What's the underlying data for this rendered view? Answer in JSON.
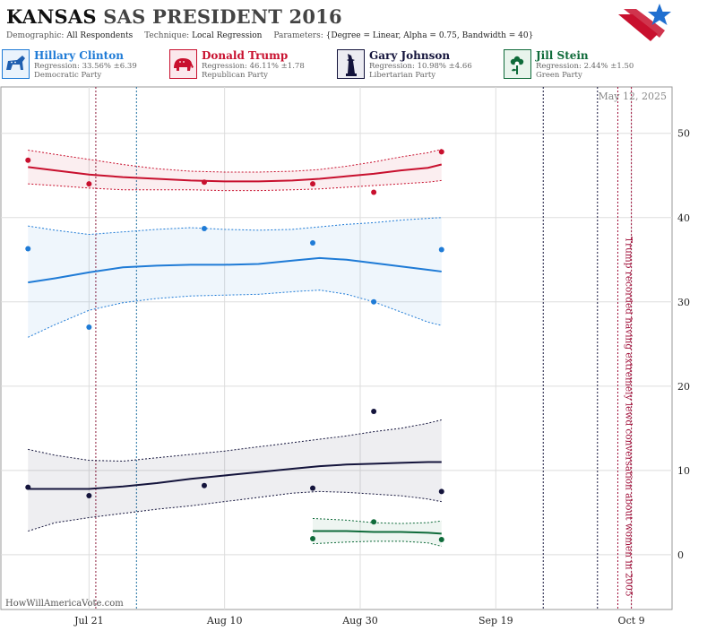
{
  "header": {
    "title_state": "KANSAS",
    "title_rest": "SAS PRESIDENT 2016",
    "demographic_label": "Demographic:",
    "demographic_value": "All Respondents",
    "technique_label": "Technique:",
    "technique_value": "Local Regression",
    "parameters_label": "Parameters:",
    "parameters_value": "{Degree = Linear, Alpha = 0.75, Bandwidth = 40}"
  },
  "candidates": [
    {
      "name": "Hillary Clinton",
      "regression": "Regression: 33.56% ±6.39",
      "party": "Democratic Party",
      "color": "#1f7bd6",
      "icon": "donkey-icon"
    },
    {
      "name": "Donald Trump",
      "regression": "Regression: 46.11% ±1.78",
      "party": "Republican Party",
      "color": "#c8102e",
      "icon": "elephant-icon"
    },
    {
      "name": "Gary Johnson",
      "regression": "Regression: 10.98% ±4.66",
      "party": "Libertarian Party",
      "color": "#14143c",
      "icon": "statue-of-liberty-icon"
    },
    {
      "name": "Jill Stein",
      "regression": "Regression: 2.44% ±1.50",
      "party": "Green Party",
      "color": "#0f6b3a",
      "icon": "flower-icon"
    }
  ],
  "date_label": "May 12, 2025",
  "annotation": "Trump recorded having extremely lewd conversation about women in 2005",
  "watermark": "HowWillAmericaVote.com",
  "chart_data": {
    "type": "scatter",
    "x_ticks": [
      "Jul 21",
      "Aug 10",
      "Aug 30",
      "Sep 19",
      "Oct 9"
    ],
    "x_tick_days": [
      0,
      20,
      40,
      60,
      80
    ],
    "xlim_days": [
      -13,
      86
    ],
    "y_ticks": [
      0,
      10,
      20,
      30,
      40,
      50
    ],
    "ylim": [
      -6.5,
      55.5
    ],
    "y_axis_side": "right",
    "grid": true,
    "event_lines": [
      {
        "day": 1,
        "color": "#8b1a3a"
      },
      {
        "day": 7,
        "color": "#1f6fa0"
      },
      {
        "day": 67,
        "color": "#14143c"
      },
      {
        "day": 75,
        "color": "#14143c"
      },
      {
        "day": 78,
        "color": "#a0103a"
      },
      {
        "day": 80,
        "color": "#a0103a"
      }
    ],
    "series": [
      {
        "name": "Hillary Clinton",
        "color": "#1f7bd6",
        "points": [
          [
            -9,
            36.3
          ],
          [
            0,
            27
          ],
          [
            17,
            38.7
          ],
          [
            33,
            37
          ],
          [
            42,
            30
          ],
          [
            52,
            36.2
          ]
        ],
        "fit_x": [
          -9,
          -5,
          0,
          5,
          10,
          15,
          20,
          25,
          30,
          34,
          38,
          42,
          46,
          50,
          52
        ],
        "fit": [
          32.3,
          32.8,
          33.5,
          34.1,
          34.3,
          34.4,
          34.4,
          34.5,
          34.9,
          35.2,
          35.0,
          34.6,
          34.2,
          33.8,
          33.6
        ],
        "upper": [
          39.0,
          38.5,
          38.0,
          38.3,
          38.6,
          38.8,
          38.6,
          38.5,
          38.6,
          38.9,
          39.2,
          39.4,
          39.7,
          39.9,
          40.0
        ],
        "lower": [
          25.8,
          27.3,
          29.0,
          29.9,
          30.4,
          30.7,
          30.8,
          30.9,
          31.2,
          31.4,
          30.9,
          30.0,
          28.8,
          27.6,
          27.2
        ]
      },
      {
        "name": "Donald Trump",
        "color": "#c8102e",
        "points": [
          [
            -9,
            46.8
          ],
          [
            0,
            44
          ],
          [
            17,
            44.2
          ],
          [
            33,
            44
          ],
          [
            42,
            43
          ],
          [
            52,
            47.8
          ]
        ],
        "fit_x": [
          -9,
          -5,
          0,
          5,
          10,
          15,
          20,
          25,
          30,
          34,
          38,
          42,
          46,
          50,
          52
        ],
        "fit": [
          46.0,
          45.6,
          45.1,
          44.8,
          44.6,
          44.4,
          44.3,
          44.3,
          44.4,
          44.6,
          44.9,
          45.2,
          45.6,
          45.9,
          46.3
        ],
        "upper": [
          48.0,
          47.5,
          46.9,
          46.3,
          45.8,
          45.5,
          45.4,
          45.4,
          45.5,
          45.7,
          46.1,
          46.6,
          47.2,
          47.7,
          48.1
        ],
        "lower": [
          44.0,
          43.8,
          43.5,
          43.3,
          43.3,
          43.3,
          43.2,
          43.2,
          43.3,
          43.4,
          43.6,
          43.8,
          44.0,
          44.2,
          44.4
        ]
      },
      {
        "name": "Gary Johnson",
        "color": "#14143c",
        "points": [
          [
            -9,
            8
          ],
          [
            0,
            7
          ],
          [
            17,
            8.2
          ],
          [
            33,
            7.9
          ],
          [
            42,
            17
          ],
          [
            52,
            7.5
          ]
        ],
        "fit_x": [
          -9,
          -5,
          0,
          5,
          10,
          15,
          20,
          25,
          30,
          34,
          38,
          42,
          46,
          50,
          52
        ],
        "fit": [
          7.8,
          7.8,
          7.8,
          8.1,
          8.5,
          9.0,
          9.4,
          9.8,
          10.2,
          10.5,
          10.7,
          10.8,
          10.9,
          11.0,
          11.0
        ],
        "upper": [
          12.5,
          11.8,
          11.2,
          11.1,
          11.5,
          11.9,
          12.3,
          12.8,
          13.3,
          13.7,
          14.1,
          14.6,
          15.0,
          15.6,
          16.0
        ],
        "lower": [
          2.8,
          3.8,
          4.4,
          4.9,
          5.4,
          5.8,
          6.3,
          6.8,
          7.3,
          7.5,
          7.4,
          7.2,
          7.0,
          6.6,
          6.3
        ]
      },
      {
        "name": "Jill Stein",
        "color": "#0f6b3a",
        "points": [
          [
            33,
            1.9
          ],
          [
            42,
            3.9
          ],
          [
            52,
            1.8
          ]
        ],
        "fit_x": [
          33,
          38,
          42,
          46,
          50,
          52
        ],
        "fit": [
          2.8,
          2.8,
          2.7,
          2.7,
          2.6,
          2.5
        ],
        "upper": [
          4.3,
          4.1,
          3.8,
          3.7,
          3.8,
          4.0
        ],
        "lower": [
          1.3,
          1.5,
          1.6,
          1.6,
          1.4,
          1.0
        ]
      }
    ]
  }
}
